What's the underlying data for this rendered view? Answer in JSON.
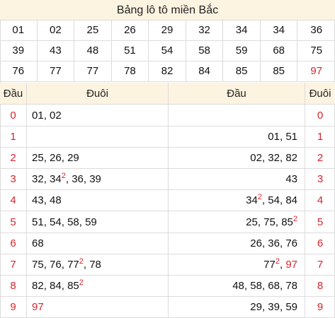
{
  "title": "Bảng lô tô miền Bắc",
  "numbers": [
    "01",
    "02",
    "25",
    "26",
    "29",
    "32",
    "34",
    "34",
    "36",
    "39",
    "43",
    "48",
    "51",
    "54",
    "58",
    "59",
    "68",
    "75",
    "76",
    "77",
    "77",
    "78",
    "82",
    "84",
    "85",
    "85",
    "97"
  ],
  "red_numbers": [
    "97"
  ],
  "left_table": {
    "head_label": "Đầu",
    "tail_label": "Đuôi",
    "rows": [
      {
        "head": "0",
        "tails": [
          {
            "v": "01"
          },
          {
            "v": "02"
          }
        ]
      },
      {
        "head": "1",
        "tails": []
      },
      {
        "head": "2",
        "tails": [
          {
            "v": "25"
          },
          {
            "v": "26"
          },
          {
            "v": "29"
          }
        ]
      },
      {
        "head": "3",
        "tails": [
          {
            "v": "32"
          },
          {
            "v": "34",
            "sup": "2"
          },
          {
            "v": "36"
          },
          {
            "v": "39"
          }
        ]
      },
      {
        "head": "4",
        "tails": [
          {
            "v": "43"
          },
          {
            "v": "48"
          }
        ]
      },
      {
        "head": "5",
        "tails": [
          {
            "v": "51"
          },
          {
            "v": "54"
          },
          {
            "v": "58"
          },
          {
            "v": "59"
          }
        ]
      },
      {
        "head": "6",
        "tails": [
          {
            "v": "68"
          }
        ]
      },
      {
        "head": "7",
        "tails": [
          {
            "v": "75"
          },
          {
            "v": "76"
          },
          {
            "v": "77",
            "sup": "2"
          },
          {
            "v": "78"
          }
        ]
      },
      {
        "head": "8",
        "tails": [
          {
            "v": "82"
          },
          {
            "v": "84"
          },
          {
            "v": "85",
            "sup": "2"
          }
        ]
      },
      {
        "head": "9",
        "tails": [
          {
            "v": "97",
            "red": true
          }
        ]
      }
    ]
  },
  "right_table": {
    "head_label": "Đầu",
    "tail_label": "Đuôi",
    "rows": [
      {
        "tail": "0",
        "heads": []
      },
      {
        "tail": "1",
        "heads": [
          {
            "v": "01"
          },
          {
            "v": "51"
          }
        ]
      },
      {
        "tail": "2",
        "heads": [
          {
            "v": "02"
          },
          {
            "v": "32"
          },
          {
            "v": "82"
          }
        ]
      },
      {
        "tail": "3",
        "heads": [
          {
            "v": "43"
          }
        ]
      },
      {
        "tail": "4",
        "heads": [
          {
            "v": "34",
            "sup": "2"
          },
          {
            "v": "54"
          },
          {
            "v": "84"
          }
        ]
      },
      {
        "tail": "5",
        "heads": [
          {
            "v": "25"
          },
          {
            "v": "75"
          },
          {
            "v": "85",
            "sup": "2"
          }
        ]
      },
      {
        "tail": "6",
        "heads": [
          {
            "v": "26"
          },
          {
            "v": "36"
          },
          {
            "v": "76"
          }
        ]
      },
      {
        "tail": "7",
        "heads": [
          {
            "v": "77",
            "sup": "2"
          },
          {
            "v": "97",
            "red": true
          }
        ]
      },
      {
        "tail": "8",
        "heads": [
          {
            "v": "48"
          },
          {
            "v": "58"
          },
          {
            "v": "68"
          },
          {
            "v": "78"
          }
        ]
      },
      {
        "tail": "9",
        "heads": [
          {
            "v": "29"
          },
          {
            "v": "39"
          },
          {
            "v": "59"
          }
        ]
      }
    ]
  },
  "colors": {
    "accent_red": "#d9252a",
    "header_bg": "#fdf3e1",
    "border": "#dcdcdc"
  }
}
